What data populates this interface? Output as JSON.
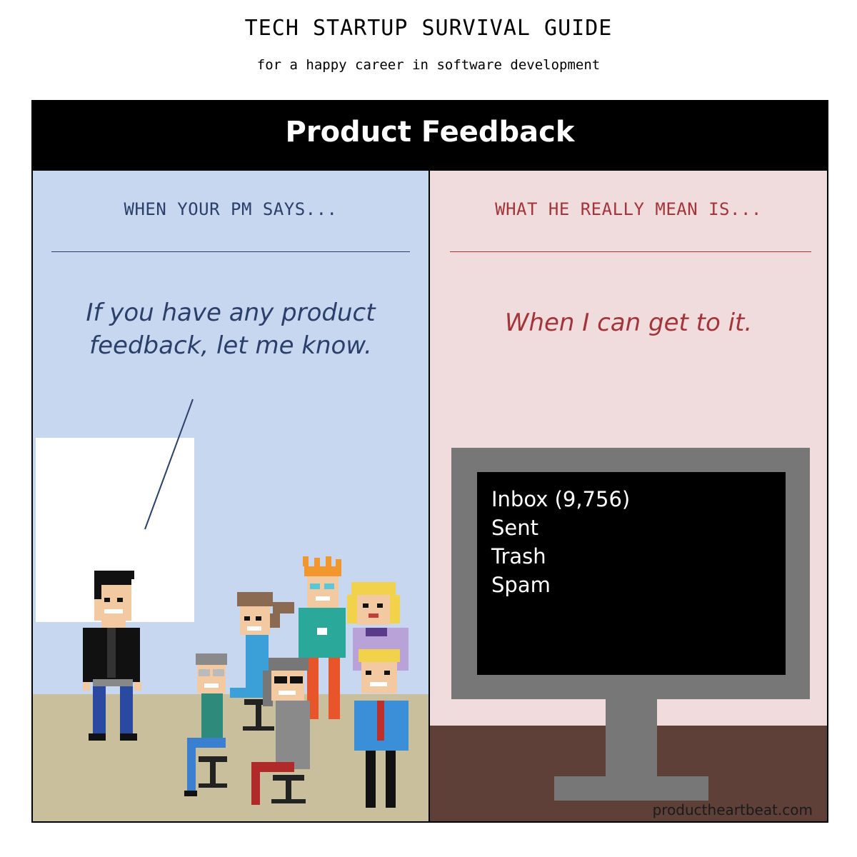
{
  "guide": {
    "title": "TECH STARTUP SURVIVAL GUIDE",
    "subtitle": "for a happy career in software development"
  },
  "comic": {
    "header_title": "Product Feedback",
    "left_panel": {
      "heading": "WHEN YOUR PM SAYS...",
      "quote_line1": "If you have any product",
      "quote_line2": "feedback, let me know.",
      "background_color": "#c6d7ef",
      "text_color": "#2b3f6b"
    },
    "right_panel": {
      "heading": "WHAT HE REALLY MEAN IS...",
      "quote": "When I can get to it.",
      "background_color": "#f0dcdc",
      "text_color": "#a2353a"
    },
    "monitor": {
      "items": [
        "Inbox (9,756)",
        "Sent",
        "Trash",
        "Spam"
      ]
    },
    "credit": "productheartbeat.com"
  }
}
